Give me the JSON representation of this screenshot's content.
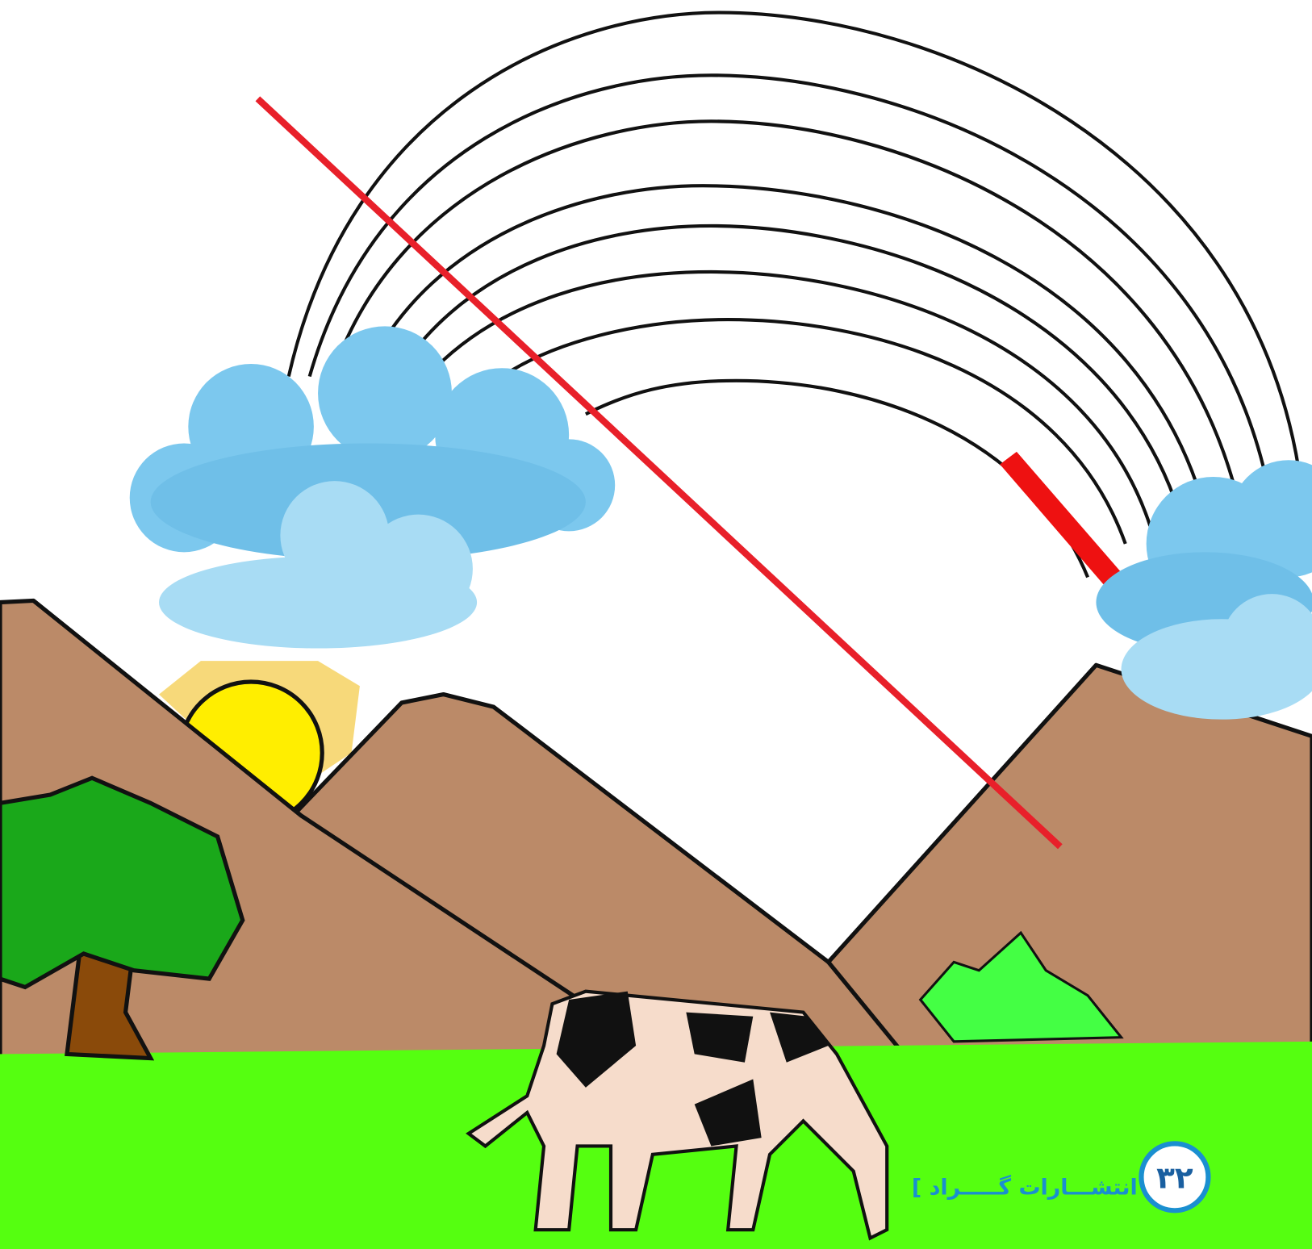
{
  "watermark": {
    "publisher": "[ انتشـــارات گـــــراد ]",
    "page_number": "۳۲"
  }
}
